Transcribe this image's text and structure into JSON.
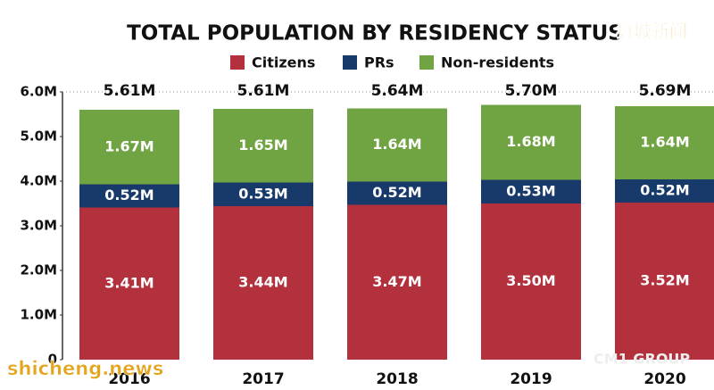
{
  "chart_data": {
    "type": "stacked-bar",
    "title": "TOTAL POPULATION BY RESIDENCY STATUS",
    "categories": [
      "2016",
      "2017",
      "2018",
      "2019",
      "2020"
    ],
    "series": [
      {
        "name": "Citizens",
        "color": "#b3303d",
        "values": [
          3.41,
          3.44,
          3.47,
          3.5,
          3.52
        ],
        "value_labels": [
          "3.41M",
          "3.44M",
          "3.47M",
          "3.50M",
          "3.52M"
        ]
      },
      {
        "name": "PRs",
        "color": "#173a6a",
        "values": [
          0.52,
          0.53,
          0.52,
          0.53,
          0.52
        ],
        "value_labels": [
          "0.52M",
          "0.53M",
          "0.52M",
          "0.53M",
          "0.52M"
        ]
      },
      {
        "name": "Non-residents",
        "color": "#70a443",
        "values": [
          1.67,
          1.65,
          1.64,
          1.68,
          1.64
        ],
        "value_labels": [
          "1.67M",
          "1.65M",
          "1.64M",
          "1.68M",
          "1.64M"
        ]
      }
    ],
    "totals": {
      "values": [
        5.61,
        5.61,
        5.64,
        5.7,
        5.69
      ],
      "value_labels": [
        "5.61M",
        "5.61M",
        "5.64M",
        "5.70M",
        "5.69M"
      ]
    },
    "ylim": [
      0,
      6
    ],
    "yticks": [
      0,
      {
        "value": 1,
        "label": "1.0M"
      },
      {
        "value": 2,
        "label": "2.0M"
      },
      {
        "value": 3,
        "label": "3.0M"
      },
      {
        "value": 4,
        "label": "4.0M"
      },
      {
        "value": 5,
        "label": "5.0M"
      },
      {
        "value": 6,
        "label": "6.0M"
      }
    ],
    "legend": "top",
    "watermarks": [
      "狮城新闻",
      "shicheng.news",
      "CM1 GROUP"
    ]
  }
}
